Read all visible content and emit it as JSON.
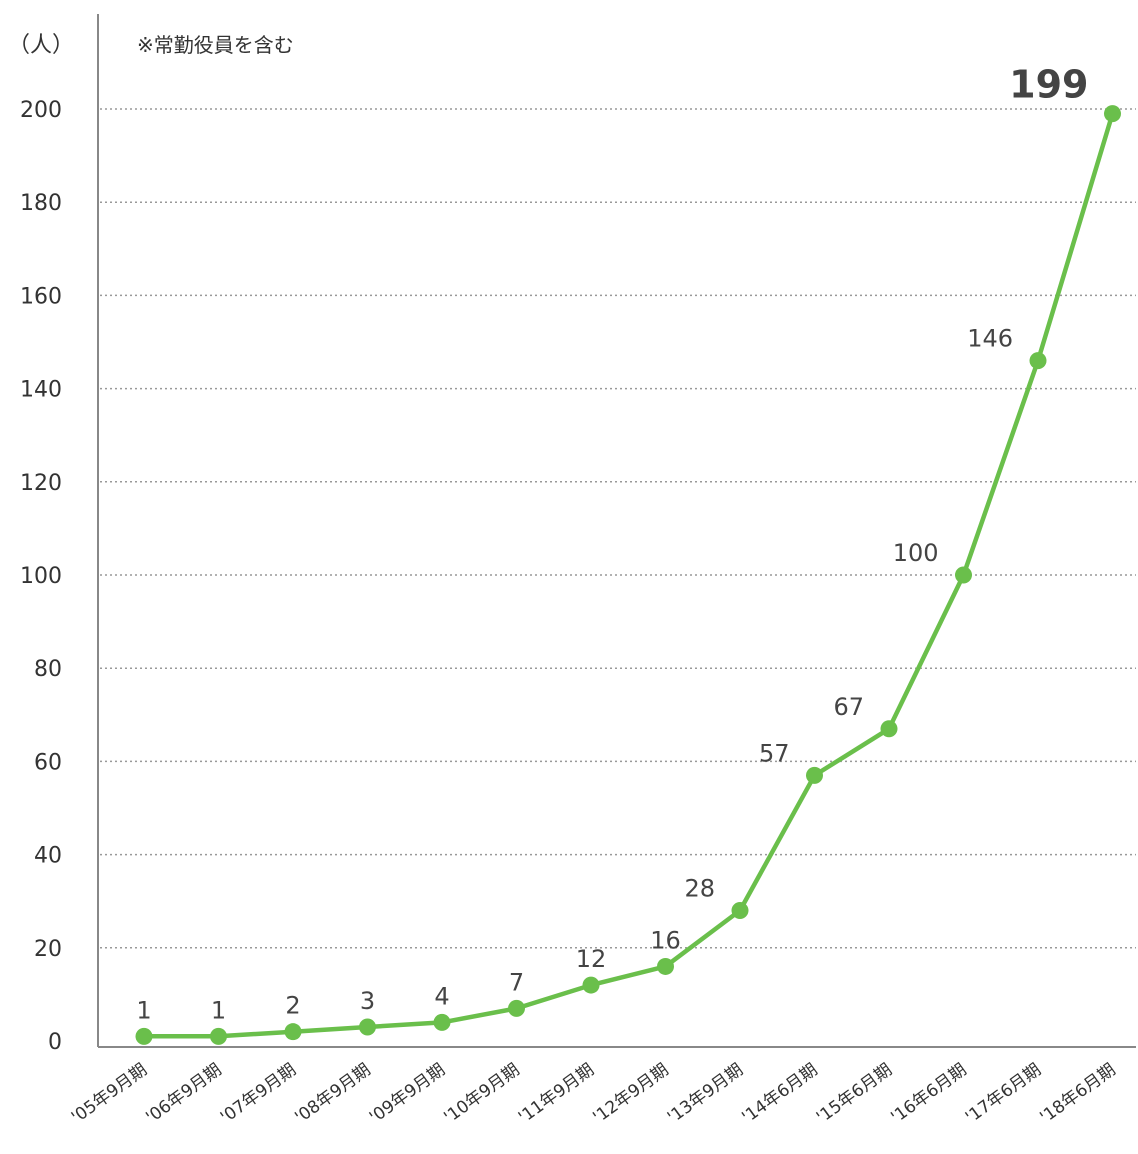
{
  "chart_data": {
    "type": "line",
    "y_unit_label": "（人）",
    "note": "※常勤役員を含む",
    "categories": [
      "'05年9月期",
      "'06年9月期",
      "'07年9月期",
      "'08年9月期",
      "'09年9月期",
      "'10年9月期",
      "'11年9月期",
      "'12年9月期",
      "'13年9月期",
      "'14年6月期",
      "'15年6月期",
      "'16年6月期",
      "'17年6月期",
      "'18年6月期"
    ],
    "series": [
      {
        "values": [
          1,
          1,
          2,
          3,
          4,
          7,
          12,
          16,
          28,
          57,
          67,
          100,
          146,
          199
        ],
        "data_labels": [
          "1",
          "1",
          "2",
          "3",
          "4",
          "7",
          "12",
          "16",
          "28",
          "57",
          "67",
          "100",
          "146",
          "199"
        ]
      }
    ],
    "emphasized_label_index": 13,
    "ylim": [
      0,
      200
    ],
    "yticks": [
      0,
      20,
      40,
      60,
      80,
      100,
      120,
      140,
      160,
      180,
      200
    ],
    "grid": true,
    "colors": {
      "line": "#6abf4b",
      "marker": "#6abf4b",
      "grid": "#999999",
      "axis": "#888888",
      "text": "#333333"
    }
  }
}
